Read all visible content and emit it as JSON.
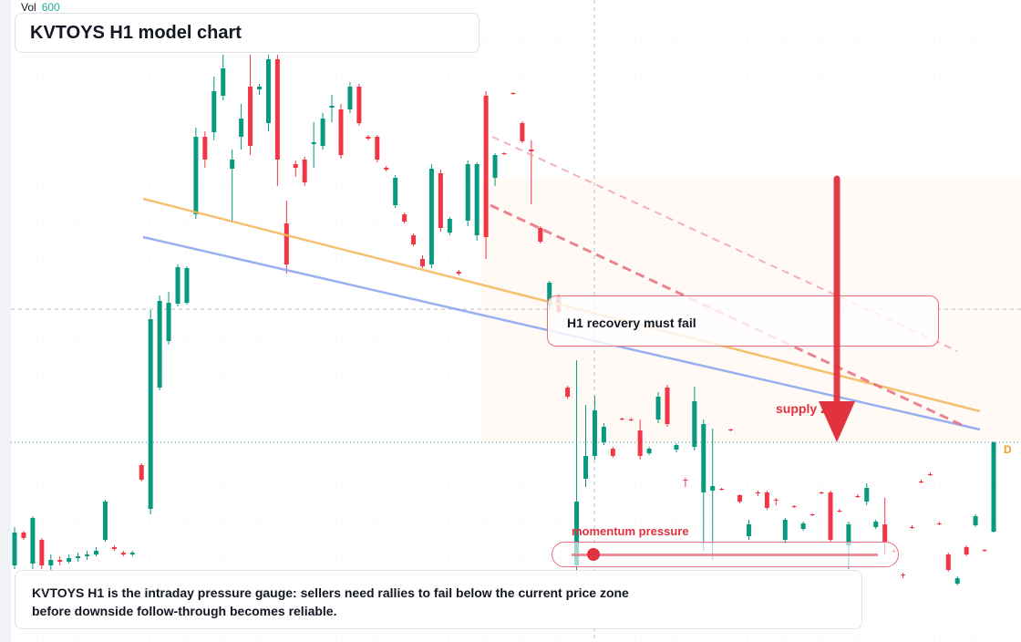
{
  "chart_data": {
    "type": "candlestick",
    "title": "KVTOYS H1 model chart",
    "volume_label": "Vol",
    "volume_value": "600",
    "callout": "H1 recovery must fail",
    "zone_label": "supply zone",
    "gauge_label": "momentum pressure",
    "badge": "D",
    "description": "KVTOYS H1 is the intraday pressure gauge: sellers need rallies to fail below the current price zone before downside follow-through becomes reliable.",
    "up_color": "#089981",
    "down_color": "#f23645",
    "ylim": [
      0,
      704
    ],
    "open": [
      84,
      120,
      86,
      112,
      84,
      90,
      88,
      92,
      94,
      96,
      112,
      104,
      98,
      96,
      194,
      146,
      279,
      330,
      371,
      372,
      469,
      554,
      559,
      599,
      519,
      554,
      609,
      606,
      569,
      639,
      459,
      524,
      529,
      546,
      544,
      586,
      584,
      584,
      609,
      554,
      554,
      520,
      479,
      469,
      446,
      420,
      414,
      514,
      449,
      406,
      462,
      446,
      599,
      509,
      536,
      602,
      569,
      540,
      454,
      369,
      379,
      279,
      84,
      179,
      204,
      219,
      212,
      245,
      244,
      232,
      207,
      244,
      279,
      211,
      178,
      214,
      164,
      166,
      168,
      233,
      161,
      116,
      164,
      164,
      156,
      112,
      149,
      124,
      140,
      164,
      164,
      144,
      106,
      160,
      154,
      126,
      129,
      100,
      74,
      126,
      176,
      184,
      130,
      96,
      64,
      104,
      128,
      101,
      121
    ],
    "high": [
      126,
      122,
      138,
      114,
      96,
      94,
      96,
      98,
      100,
      104,
      156,
      106,
      100,
      100,
      196,
      364,
      380,
      384,
      414,
      412,
      564,
      560,
      620,
      644,
      540,
      590,
      644,
      612,
      644,
      644,
      484,
      528,
      532,
      570,
      580,
      600,
      590,
      614,
      612,
      556,
      556,
      522,
      512,
      471,
      448,
      424,
      524,
      518,
      466,
      408,
      528,
      526,
      604,
      536,
      537,
      603,
      571,
      550,
      456,
      396,
      381,
      281,
      309,
      260,
      270,
      240,
      214,
      246,
      246,
      244,
      214,
      274,
      282,
      218,
      180,
      280,
      244,
      234,
      169,
      234,
      162,
      134,
      166,
      166,
      158,
      136,
      150,
      132,
      141,
      165,
      166,
      146,
      132,
      162,
      174,
      134,
      158,
      102,
      76,
      128,
      178,
      186,
      132,
      98,
      72,
      106,
      140,
      102,
      220
    ],
    "low": [
      80,
      112,
      80,
      80,
      78,
      84,
      86,
      88,
      90,
      94,
      110,
      100,
      94,
      94,
      176,
      140,
      276,
      326,
      368,
      370,
      464,
      520,
      550,
      594,
      460,
      540,
      534,
      600,
      560,
      500,
      404,
      510,
      500,
      520,
      540,
      570,
      530,
      580,
      566,
      550,
      526,
      516,
      476,
      459,
      434,
      410,
      410,
      450,
      446,
      402,
      456,
      440,
      420,
      500,
      534,
      600,
      547,
      480,
      437,
      364,
      360,
      267,
      70,
      170,
      200,
      216,
      202,
      243,
      242,
      200,
      205,
      240,
      236,
      208,
      170,
      210,
      100,
      90,
      166,
      231,
      152,
      112,
      160,
      145,
      150,
      108,
      147,
      122,
      138,
      162,
      110,
      142,
      80,
      158,
      150,
      124,
      96,
      98,
      70,
      124,
      174,
      182,
      128,
      77,
      62,
      94,
      126,
      99,
      120
    ],
    "close": [
      120,
      114,
      136,
      84,
      90,
      88,
      92,
      94,
      96,
      100,
      154,
      102,
      96,
      98,
      178,
      354,
      374,
      372,
      411,
      410,
      554,
      529,
      604,
      629,
      529,
      574,
      544,
      609,
      639,
      529,
      414,
      520,
      504,
      548,
      574,
      588,
      534,
      609,
      569,
      552,
      529,
      518,
      509,
      461,
      436,
      412,
      519,
      454,
      464,
      404,
      524,
      524,
      444,
      534,
      535,
      601,
      549,
      538,
      439,
      394,
      362,
      269,
      154,
      204,
      254,
      236,
      204,
      244,
      243,
      204,
      212,
      269,
      239,
      216,
      177,
      264,
      239,
      171,
      167,
      232,
      154,
      129,
      163,
      147,
      155,
      134,
      148,
      130,
      139,
      163,
      112,
      143,
      129,
      159,
      169,
      132,
      109,
      99,
      73,
      125,
      175,
      183,
      129,
      79,
      70,
      96,
      138,
      100,
      219
    ]
  }
}
